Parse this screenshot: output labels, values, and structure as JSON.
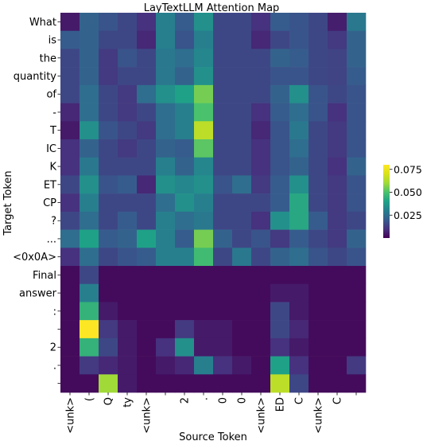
{
  "chart_data": {
    "type": "heatmap",
    "title": "LayTextLLM Attention Map",
    "xlabel": "Source Token",
    "ylabel": "Target Token",
    "x_labels": [
      "<unk>",
      "(",
      "Q",
      "ty",
      "<unk>",
      "",
      "2",
      ".",
      "0",
      "0",
      "<unk>",
      "ED",
      "C",
      "<unk>",
      "C",
      ""
    ],
    "y_labels": [
      "What",
      "is",
      "the",
      "quantity",
      "of",
      "-",
      "T",
      "IC",
      "K",
      "ET",
      "CP",
      "?",
      "...",
      "<0x0A>",
      "Final",
      "answer",
      ":",
      "",
      "2",
      ".",
      ""
    ],
    "colormap": "viridis",
    "vmin": 0.0,
    "vmax": 0.08,
    "colorbar_ticks": [
      0.025,
      0.05,
      0.075
    ],
    "colorbar_tick_labels": [
      "0.025",
      "0.050",
      "0.075"
    ],
    "values": [
      [
        0.005,
        0.022,
        0.018,
        0.015,
        0.01,
        0.03,
        0.02,
        0.035,
        0.015,
        0.015,
        0.01,
        0.02,
        0.018,
        0.015,
        0.006,
        0.028
      ],
      [
        0.02,
        0.022,
        0.015,
        0.015,
        0.008,
        0.03,
        0.018,
        0.03,
        0.015,
        0.015,
        0.008,
        0.015,
        0.018,
        0.015,
        0.012,
        0.022
      ],
      [
        0.015,
        0.022,
        0.012,
        0.018,
        0.015,
        0.028,
        0.025,
        0.032,
        0.015,
        0.015,
        0.015,
        0.022,
        0.02,
        0.015,
        0.014,
        0.022
      ],
      [
        0.015,
        0.022,
        0.012,
        0.015,
        0.015,
        0.028,
        0.022,
        0.035,
        0.015,
        0.015,
        0.015,
        0.018,
        0.018,
        0.015,
        0.014,
        0.02
      ],
      [
        0.015,
        0.025,
        0.015,
        0.012,
        0.025,
        0.035,
        0.04,
        0.055,
        0.015,
        0.015,
        0.015,
        0.022,
        0.035,
        0.018,
        0.015,
        0.018
      ],
      [
        0.008,
        0.025,
        0.015,
        0.012,
        0.015,
        0.025,
        0.03,
        0.05,
        0.015,
        0.015,
        0.01,
        0.02,
        0.025,
        0.018,
        0.01,
        0.018
      ],
      [
        0.005,
        0.035,
        0.018,
        0.015,
        0.012,
        0.025,
        0.03,
        0.065,
        0.015,
        0.015,
        0.008,
        0.018,
        0.028,
        0.015,
        0.012,
        0.018
      ],
      [
        0.01,
        0.022,
        0.015,
        0.012,
        0.015,
        0.022,
        0.02,
        0.052,
        0.015,
        0.015,
        0.01,
        0.018,
        0.025,
        0.015,
        0.012,
        0.018
      ],
      [
        0.01,
        0.028,
        0.015,
        0.015,
        0.015,
        0.03,
        0.022,
        0.032,
        0.015,
        0.015,
        0.01,
        0.018,
        0.022,
        0.015,
        0.01,
        0.022
      ],
      [
        0.015,
        0.035,
        0.018,
        0.02,
        0.008,
        0.035,
        0.032,
        0.035,
        0.018,
        0.025,
        0.012,
        0.02,
        0.035,
        0.015,
        0.012,
        0.018
      ],
      [
        0.01,
        0.03,
        0.015,
        0.015,
        0.015,
        0.025,
        0.035,
        0.03,
        0.015,
        0.015,
        0.015,
        0.02,
        0.042,
        0.015,
        0.012,
        0.018
      ],
      [
        0.015,
        0.025,
        0.015,
        0.02,
        0.015,
        0.03,
        0.025,
        0.028,
        0.015,
        0.015,
        0.01,
        0.035,
        0.042,
        0.02,
        0.012,
        0.015
      ],
      [
        0.025,
        0.04,
        0.02,
        0.022,
        0.04,
        0.03,
        0.02,
        0.055,
        0.022,
        0.015,
        0.018,
        0.012,
        0.02,
        0.015,
        0.012,
        0.022
      ],
      [
        0.01,
        0.025,
        0.015,
        0.018,
        0.02,
        0.03,
        0.03,
        0.048,
        0.015,
        0.028,
        0.015,
        0.022,
        0.025,
        0.018,
        0.015,
        0.018
      ],
      [
        0.002,
        0.015,
        0.002,
        0.002,
        0.002,
        0.002,
        0.002,
        0.002,
        0.002,
        0.002,
        0.002,
        0.002,
        0.002,
        0.002,
        0.002,
        0.002
      ],
      [
        0.002,
        0.03,
        0.002,
        0.002,
        0.002,
        0.002,
        0.002,
        0.002,
        0.002,
        0.002,
        0.002,
        0.005,
        0.005,
        0.002,
        0.002,
        0.002
      ],
      [
        0.002,
        0.045,
        0.005,
        0.002,
        0.002,
        0.002,
        0.002,
        0.002,
        0.002,
        0.002,
        0.002,
        0.015,
        0.005,
        0.002,
        0.002,
        0.002
      ],
      [
        0.002,
        0.082,
        0.012,
        0.005,
        0.002,
        0.002,
        0.012,
        0.005,
        0.005,
        0.002,
        0.002,
        0.015,
        0.008,
        0.002,
        0.002,
        0.002
      ],
      [
        0.002,
        0.045,
        0.015,
        0.005,
        0.002,
        0.01,
        0.035,
        0.005,
        0.005,
        0.002,
        0.002,
        0.01,
        0.005,
        0.002,
        0.002,
        0.002
      ],
      [
        0.002,
        0.012,
        0.008,
        0.005,
        0.002,
        0.005,
        0.008,
        0.03,
        0.01,
        0.005,
        0.002,
        0.04,
        0.01,
        0.002,
        0.002,
        0.012
      ],
      [
        0.002,
        0.002,
        0.06,
        0.005,
        0.002,
        0.002,
        0.002,
        0.002,
        0.002,
        0.002,
        0.002,
        0.065,
        0.015,
        0.002,
        0.002,
        0.002
      ]
    ]
  }
}
